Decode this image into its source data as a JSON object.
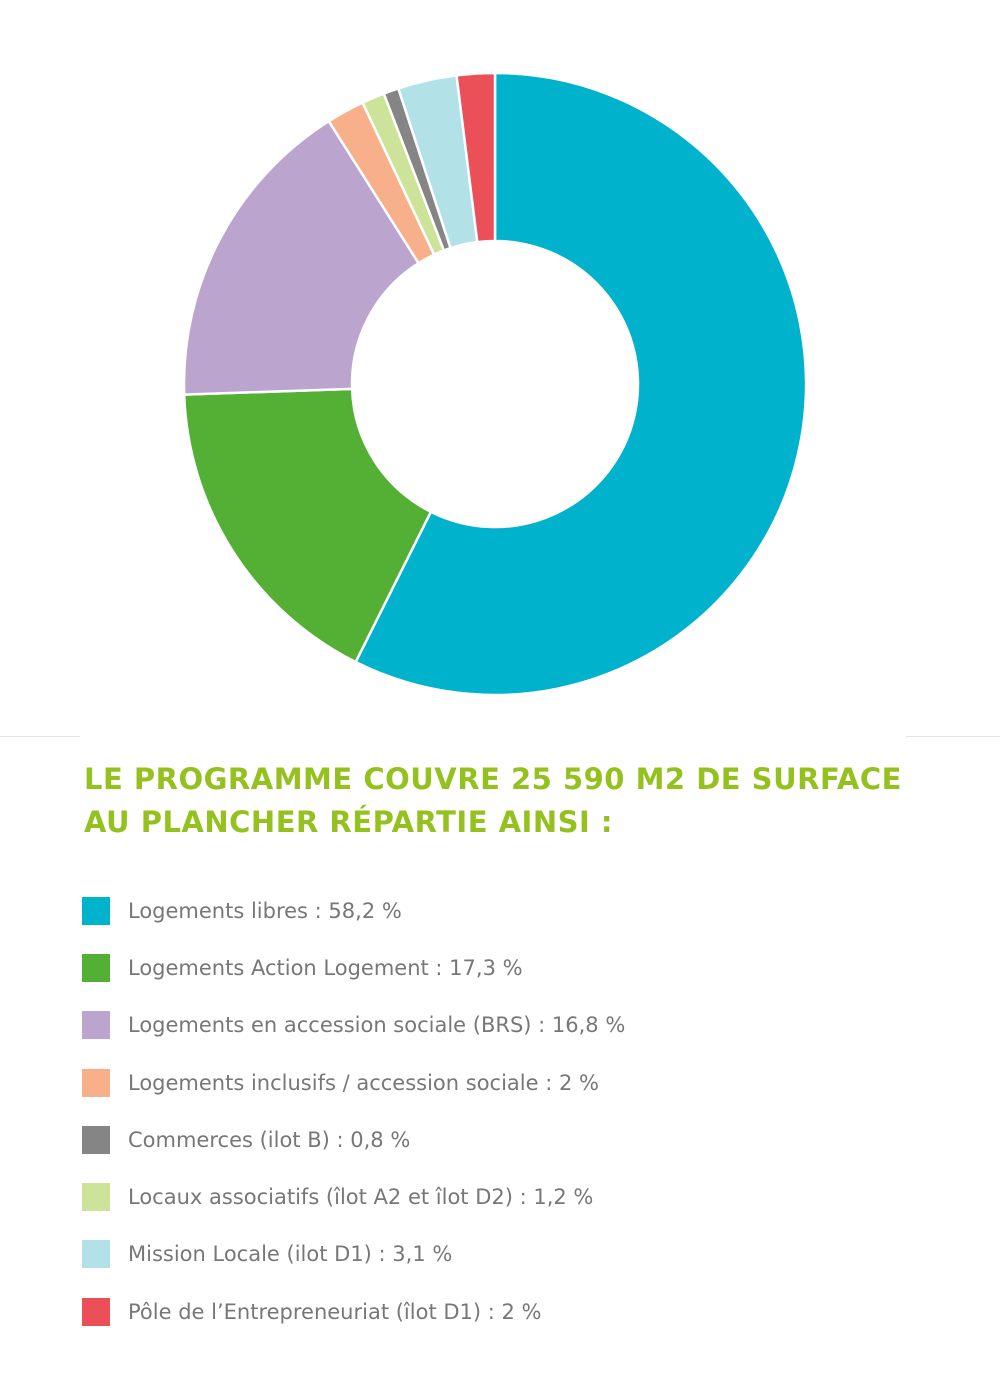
{
  "chart_data": {
    "type": "pie",
    "variant": "donut",
    "title": "LE PROGRAMME COUVRE 25 590 M2 DE SURFACE AU PLANCHER RÉPARTIE AINSI :",
    "title_lines": [
      "LE PROGRAMME COUVRE 25 590 M2 DE SURFACE",
      "AU PLANCHER RÉPARTIE AINSI :"
    ],
    "legend_position": "bottom",
    "slices": [
      {
        "label": "Logements libres : 58,2 %",
        "value": 58.2,
        "color": "#00b2cc"
      },
      {
        "label": "Logements Action Logement : 17,3 %",
        "value": 17.3,
        "color": "#53b034"
      },
      {
        "label": "Logements en accession sociale (BRS) : 16,8 %",
        "value": 16.8,
        "color": "#bba5cf"
      },
      {
        "label": "Logements inclusifs / accession sociale : 2 %",
        "value": 2,
        "color": "#f7b08a"
      },
      {
        "label": "Commerces (ilot B) : 0,8 %",
        "value": 0.8,
        "color": "#858585"
      },
      {
        "label": "Locaux associatifs (îlot A2 et îlot D2) : 1,2 %",
        "value": 1.2,
        "color": "#cde39a"
      },
      {
        "label": "Mission Locale (ilot D1) : 3,1 %",
        "value": 3.1,
        "color": "#b3e1e8"
      },
      {
        "label": "Pôle de l’Entrepreneuriat (îlot D1) : 2 %",
        "value": 2,
        "color": "#eb4f58"
      }
    ],
    "chart_order": [
      0,
      1,
      2,
      3,
      5,
      4,
      6,
      7
    ]
  }
}
